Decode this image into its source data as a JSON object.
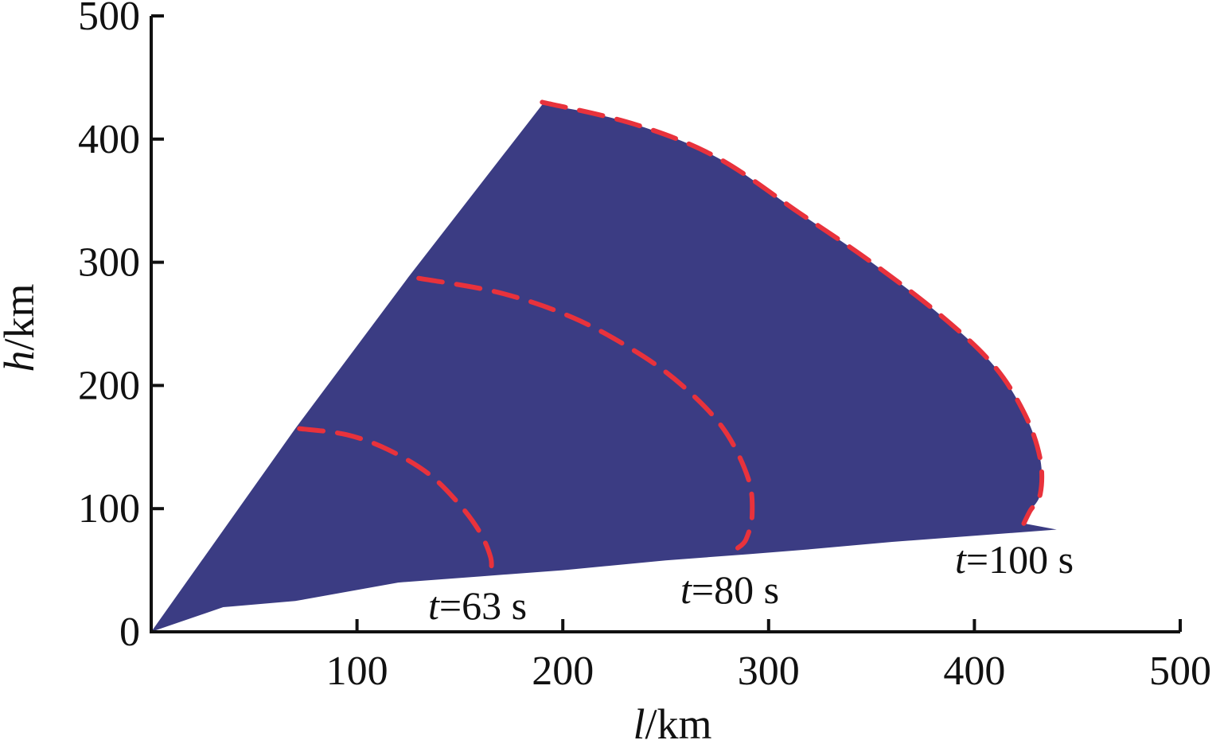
{
  "chart_data": {
    "type": "area",
    "xlabel_var": "l",
    "xlabel_unit": "/km",
    "ylabel_var": "h",
    "ylabel_unit": "/km",
    "xlim": [
      0,
      500
    ],
    "ylim": [
      0,
      500
    ],
    "xticks": [
      "100",
      "200",
      "300",
      "400",
      "500"
    ],
    "yticks": [
      "0",
      "100",
      "200",
      "300",
      "400",
      "500"
    ],
    "colors": {
      "region": "#3b3c83",
      "dashed": "#e8323c",
      "axis": "#111111"
    },
    "region": {
      "upper_boundary": [
        [
          0,
          0
        ],
        [
          70,
          165
        ],
        [
          125,
          288
        ],
        [
          190,
          428
        ]
      ],
      "lower_boundary": [
        [
          0,
          0
        ],
        [
          35,
          20
        ],
        [
          70,
          25
        ],
        [
          120,
          40
        ],
        [
          160,
          45
        ],
        [
          200,
          50
        ],
        [
          250,
          58
        ],
        [
          290,
          63
        ],
        [
          320,
          67
        ],
        [
          360,
          73
        ],
        [
          400,
          78
        ],
        [
          440,
          83
        ]
      ]
    },
    "series": [
      {
        "label_var": "t",
        "label_value": "=63 s",
        "points": [
          [
            72,
            165
          ],
          [
            95,
            160
          ],
          [
            115,
            148
          ],
          [
            135,
            128
          ],
          [
            150,
            103
          ],
          [
            160,
            80
          ],
          [
            165,
            60
          ],
          [
            165,
            48
          ]
        ]
      },
      {
        "label_var": "t",
        "label_value": "=80 s",
        "points": [
          [
            130,
            287
          ],
          [
            170,
            275
          ],
          [
            205,
            255
          ],
          [
            235,
            228
          ],
          [
            258,
            200
          ],
          [
            278,
            165
          ],
          [
            290,
            125
          ],
          [
            292,
            95
          ],
          [
            289,
            75
          ],
          [
            285,
            68
          ]
        ]
      },
      {
        "label_var": "t",
        "label_value": "=100 s",
        "points": [
          [
            190,
            430
          ],
          [
            235,
            412
          ],
          [
            275,
            385
          ],
          [
            315,
            340
          ],
          [
            350,
            300
          ],
          [
            385,
            255
          ],
          [
            410,
            215
          ],
          [
            425,
            175
          ],
          [
            432,
            140
          ],
          [
            432,
            112
          ],
          [
            427,
            98
          ],
          [
            424,
            88
          ]
        ]
      }
    ],
    "grid": false,
    "legend": "none"
  }
}
